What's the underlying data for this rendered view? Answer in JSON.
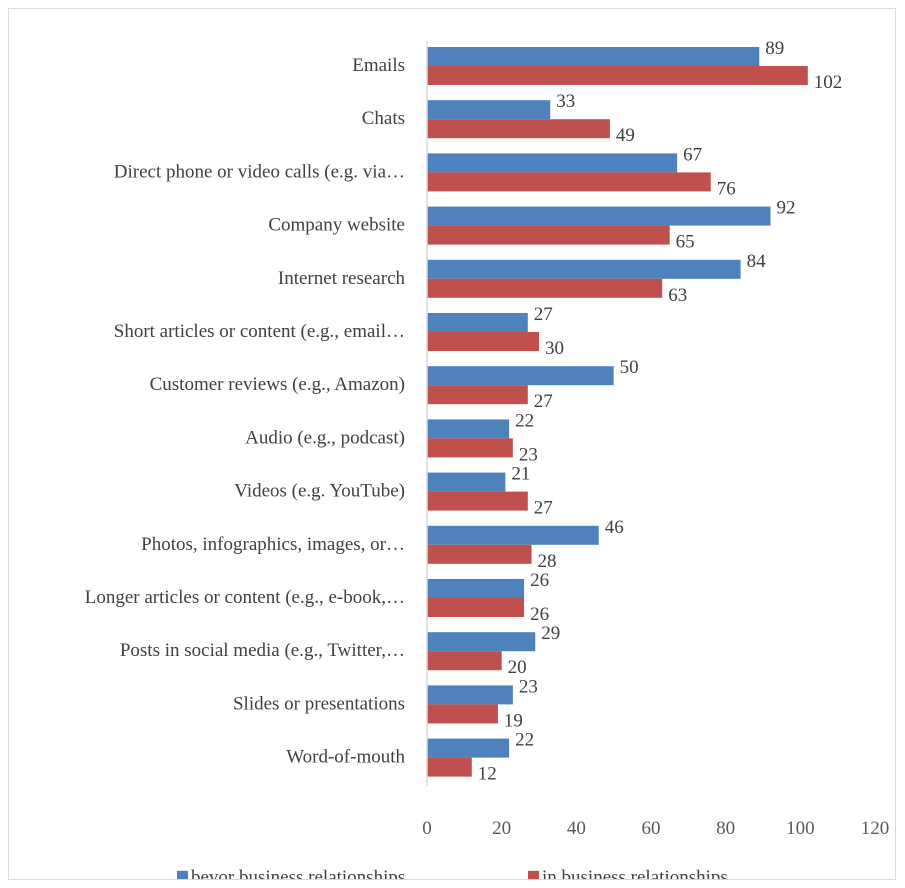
{
  "chart_data": {
    "type": "bar",
    "orientation": "horizontal",
    "categories": [
      "Emails",
      "Chats",
      "Direct phone or video calls (e.g. via…",
      "Company website",
      "Internet research",
      "Short articles or content (e.g., email…",
      "Customer reviews (e.g., Amazon)",
      "Audio (e.g., podcast)",
      "Videos (e.g. YouTube)",
      "Photos, infographics, images, or…",
      "Longer articles or content (e.g., e-book,…",
      "Posts in social media (e.g., Twitter,…",
      "Slides or presentations",
      "Word-of-mouth"
    ],
    "series": [
      {
        "name": "bevor business relationships",
        "color": "#4f81bd",
        "values": [
          89,
          33,
          67,
          92,
          84,
          27,
          50,
          22,
          21,
          46,
          26,
          29,
          23,
          22
        ]
      },
      {
        "name": "in business relationships",
        "color": "#c0504d",
        "values": [
          102,
          49,
          76,
          65,
          63,
          30,
          27,
          23,
          27,
          28,
          26,
          20,
          19,
          12
        ]
      }
    ],
    "xlim": [
      0,
      120
    ],
    "xticks": [
      0,
      20,
      40,
      60,
      80,
      100,
      120
    ],
    "grid": false,
    "legend_position": "bottom",
    "data_labels": true
  }
}
